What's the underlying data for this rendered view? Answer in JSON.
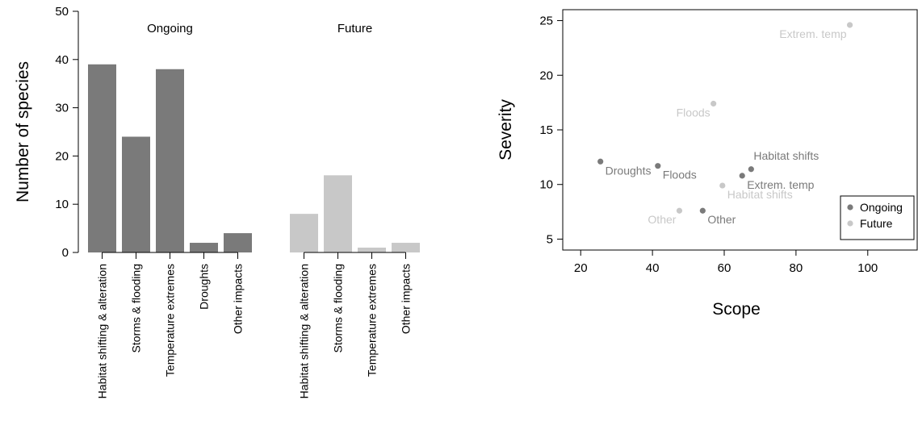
{
  "chart_data": [
    {
      "type": "bar",
      "ylabel": "Number of species",
      "ylim": [
        0,
        50
      ],
      "yticks": [
        0,
        10,
        20,
        30,
        40,
        50
      ],
      "groups": [
        {
          "name": "Ongoing",
          "color": "#7a7a7a",
          "categories": [
            "Habitat shifting & alteration",
            "Storms & flooding",
            "Temperature extremes",
            "Droughts",
            "Other impacts"
          ],
          "values": [
            39,
            24,
            38,
            2,
            4
          ]
        },
        {
          "name": "Future",
          "color": "#c8c8c8",
          "categories": [
            "Habitat shifting & alteration",
            "Storms & flooding",
            "Temperature extremes",
            "Other impacts"
          ],
          "values": [
            8,
            16,
            1,
            2
          ]
        }
      ]
    },
    {
      "type": "scatter",
      "xlabel": "Scope",
      "ylabel": "Severity",
      "xlim": [
        15,
        114
      ],
      "ylim": [
        4,
        26
      ],
      "xticks": [
        20,
        40,
        60,
        80,
        100
      ],
      "yticks": [
        5,
        10,
        15,
        20,
        25
      ],
      "legend": "bottom-right",
      "series": [
        {
          "name": "Ongoing",
          "color": "#7a7a7a",
          "points": [
            {
              "label": "Droughts",
              "x": 25.5,
              "y": 12.1,
              "pos": "right-below"
            },
            {
              "label": "Floods",
              "x": 41.5,
              "y": 11.7,
              "pos": "right-below"
            },
            {
              "label": "Habitat shifts",
              "x": 67.5,
              "y": 11.4,
              "pos": "right-above"
            },
            {
              "label": "Extrem. temp",
              "x": 65,
              "y": 10.8,
              "pos": "right-below"
            },
            {
              "label": "Other",
              "x": 54,
              "y": 7.6,
              "pos": "right-below"
            }
          ]
        },
        {
          "name": "Future",
          "color": "#c8c8c8",
          "points": [
            {
              "label": "Extrem. temp",
              "x": 95,
              "y": 24.6,
              "pos": "left-below"
            },
            {
              "label": "Floods",
              "x": 57,
              "y": 17.4,
              "pos": "left-below"
            },
            {
              "label": "Habitat shifts",
              "x": 59.5,
              "y": 9.9,
              "pos": "right-below"
            },
            {
              "label": "Other",
              "x": 47.5,
              "y": 7.6,
              "pos": "left-below"
            }
          ]
        }
      ]
    }
  ]
}
